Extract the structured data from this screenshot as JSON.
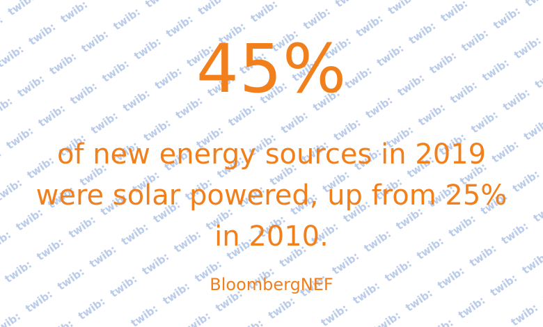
{
  "colors": {
    "accent": "#f07f1c",
    "watermark": "#b9cbe9",
    "background": "#ffffff"
  },
  "watermark": {
    "text": "twib:"
  },
  "headline": {
    "value": "45%"
  },
  "statement": {
    "text": "of new energy sources in 2019\nwere solar powered, up from 25%\nin 2010."
  },
  "source": {
    "label": "BloombergNEF"
  }
}
